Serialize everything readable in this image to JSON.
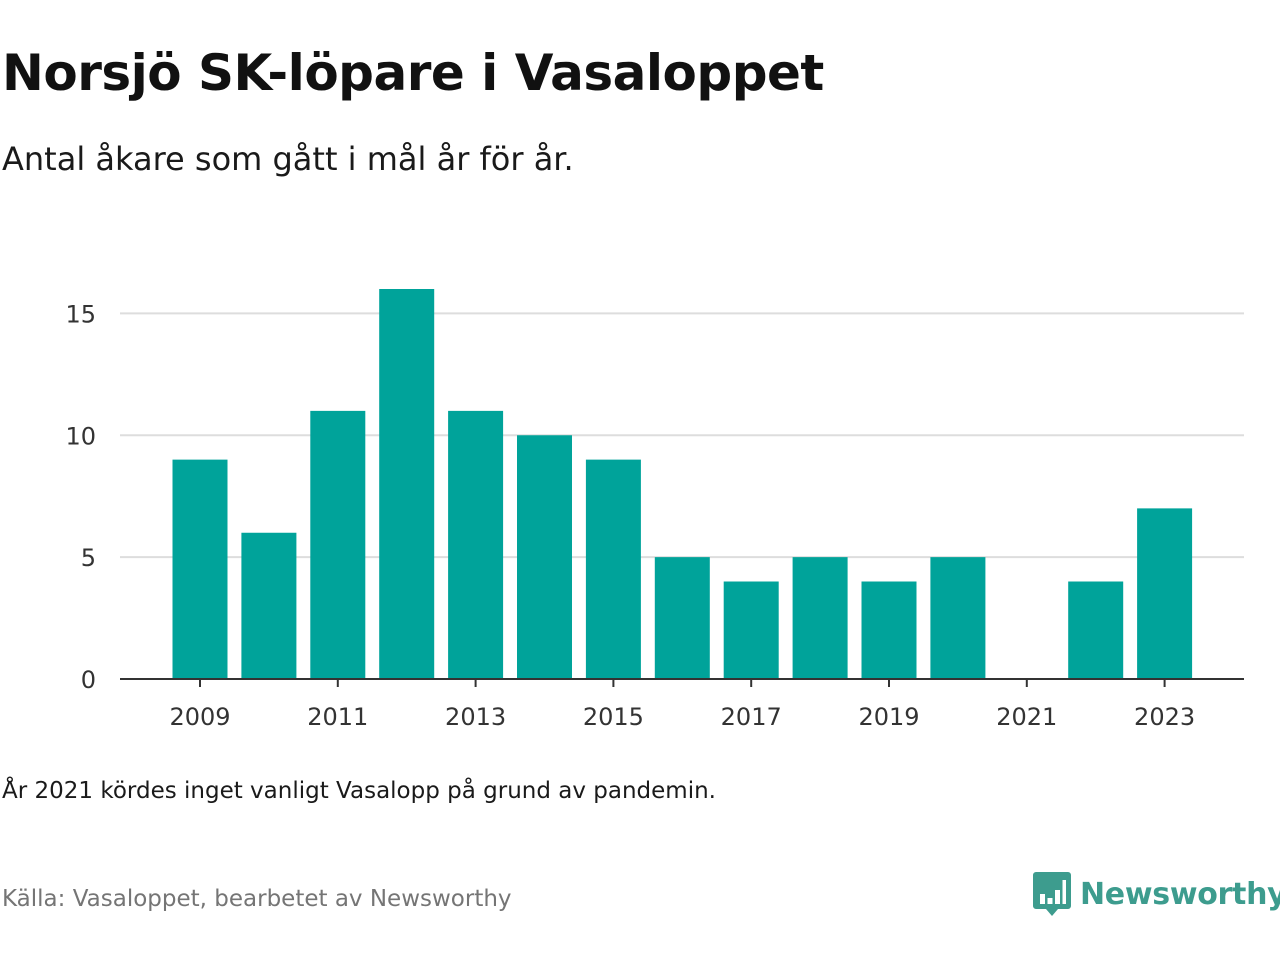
{
  "title": "Norsjö SK-löpare i Vasaloppet",
  "subtitle": "Antal åkare som gått i mål år för år.",
  "note": "År 2021 kördes inget vanligt Vasalopp på grund av pandemin.",
  "source": "Källa: Vasaloppet, bearbetet av Newsworthy",
  "brand": {
    "name": "Newsworthy",
    "icon": "newsworthy-logo-icon"
  },
  "colors": {
    "bar": "#00a39a",
    "grid": "#dddddd",
    "axis": "#333333",
    "brand": "#3d9c8e"
  },
  "chart_data": {
    "type": "bar",
    "categories": [
      "2009",
      "2010",
      "2011",
      "2012",
      "2013",
      "2014",
      "2015",
      "2016",
      "2017",
      "2018",
      "2019",
      "2020",
      "2021",
      "2022",
      "2023"
    ],
    "values": [
      9,
      6,
      11,
      16,
      11,
      10,
      9,
      5,
      4,
      5,
      4,
      5,
      0,
      4,
      7
    ],
    "x_tick_labels": [
      "2009",
      "2011",
      "2013",
      "2015",
      "2017",
      "2019",
      "2021",
      "2023"
    ],
    "y_ticks": [
      0,
      5,
      10,
      15
    ],
    "ylim": [
      0,
      16
    ],
    "grid": true,
    "title": "Norsjö SK-löpare i Vasaloppet",
    "xlabel": "",
    "ylabel": ""
  }
}
